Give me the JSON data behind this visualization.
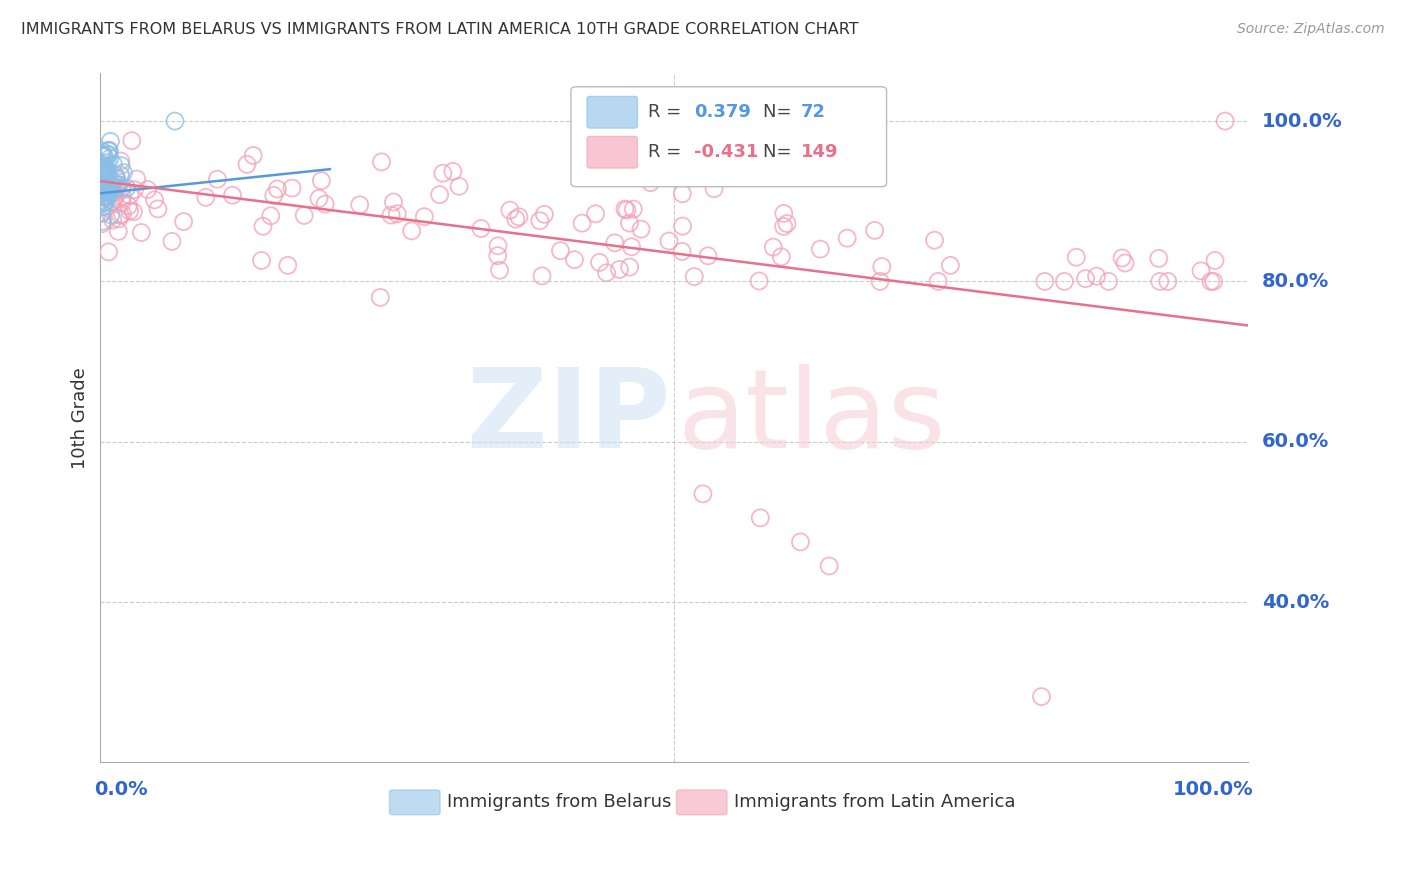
{
  "title": "IMMIGRANTS FROM BELARUS VS IMMIGRANTS FROM LATIN AMERICA 10TH GRADE CORRELATION CHART",
  "source": "Source: ZipAtlas.com",
  "ylabel": "10th Grade",
  "blue_R": 0.379,
  "blue_N": 72,
  "pink_R": -0.431,
  "pink_N": 149,
  "blue_color": "#89bfe8",
  "pink_color": "#f4a0b5",
  "blue_line_color": "#5599dd",
  "pink_line_color": "#e8708a",
  "legend_label_blue": "Immigrants from Belarus",
  "legend_label_pink": "Immigrants from Latin America",
  "title_color": "#333333",
  "axis_label_color": "#3366cc",
  "background_color": "#ffffff",
  "grid_color": "#cccccc",
  "right_yticks": [
    0.25,
    0.4,
    0.6,
    0.8,
    1.0
  ],
  "right_ylabels": [
    "",
    "40.0%",
    "60.0%",
    "80.0%",
    "100.0%"
  ],
  "ylim_min": 0.2,
  "ylim_max": 1.06,
  "xlim_min": 0.0,
  "xlim_max": 1.0,
  "blue_line_x": [
    0.0005,
    0.2
  ],
  "blue_line_y": [
    0.91,
    0.94
  ],
  "pink_line_x": [
    0.0005,
    1.0
  ],
  "pink_line_y": [
    0.925,
    0.745
  ]
}
